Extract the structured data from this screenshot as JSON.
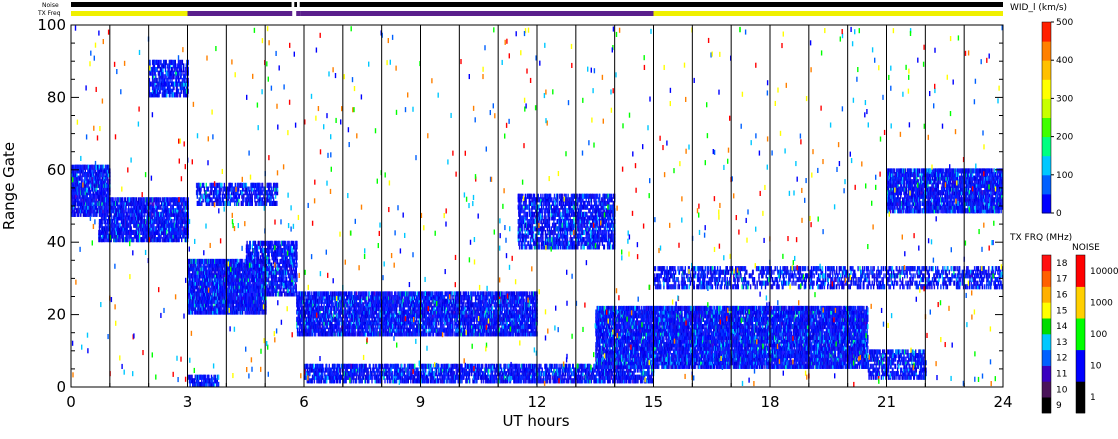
{
  "chart_data": {
    "type": "heatmap",
    "xlabel": "UT hours",
    "ylabel": "Range Gate",
    "xlim": [
      0,
      24
    ],
    "ylim": [
      0,
      100
    ],
    "x_ticks": [
      "0",
      "3",
      "6",
      "9",
      "12",
      "15",
      "18",
      "21",
      "24"
    ],
    "y_ticks": [
      "0",
      "20",
      "40",
      "60",
      "80",
      "100"
    ],
    "grid": "vertical lines every hour",
    "strip_labels": {
      "noise": "Noise",
      "txfreq": "TX Freq"
    },
    "noise_strip": {
      "color": "#000000",
      "gaps_ut": [
        [
          5.68,
          5.75
        ],
        [
          5.82,
          5.89
        ]
      ]
    },
    "txfreq_strip": [
      {
        "from": 0,
        "to": 3.0,
        "color": "#f0f000"
      },
      {
        "from": 3.0,
        "to": 5.7,
        "color": "#5a1f8c"
      },
      {
        "from": 5.7,
        "to": 5.8,
        "color": "#ffffff"
      },
      {
        "from": 5.8,
        "to": 5.9,
        "color": "#5a1f8c"
      },
      {
        "from": 5.9,
        "to": 15.0,
        "color": "#5a1f8c"
      },
      {
        "from": 15.0,
        "to": 24,
        "color": "#f0f000"
      }
    ],
    "echo_regions": [
      {
        "t0": 0.0,
        "t1": 1.0,
        "g0": 47,
        "g1": 61,
        "density": 0.75
      },
      {
        "t0": 0.7,
        "t1": 3.0,
        "g0": 40,
        "g1": 52,
        "density": 0.7
      },
      {
        "t0": 2.0,
        "t1": 3.0,
        "g0": 80,
        "g1": 90,
        "density": 0.55
      },
      {
        "t0": 3.0,
        "t1": 5.0,
        "g0": 20,
        "g1": 35,
        "density": 0.85
      },
      {
        "t0": 4.5,
        "t1": 5.8,
        "g0": 25,
        "g1": 40,
        "density": 0.6
      },
      {
        "t0": 3.2,
        "t1": 5.3,
        "g0": 50,
        "g1": 56,
        "density": 0.45
      },
      {
        "t0": 5.8,
        "t1": 12.0,
        "g0": 14,
        "g1": 26,
        "density": 0.7
      },
      {
        "t0": 6.0,
        "t1": 15.0,
        "g0": 1,
        "g1": 6,
        "density": 0.6
      },
      {
        "t0": 11.5,
        "t1": 14.0,
        "g0": 38,
        "g1": 53,
        "density": 0.55
      },
      {
        "t0": 13.5,
        "t1": 20.5,
        "g0": 5,
        "g1": 22,
        "density": 0.8
      },
      {
        "t0": 20.5,
        "t1": 22.0,
        "g0": 2,
        "g1": 10,
        "density": 0.5
      },
      {
        "t0": 15.0,
        "t1": 24.0,
        "g0": 27,
        "g1": 33,
        "density": 0.35
      },
      {
        "t0": 21.0,
        "t1": 24.0,
        "g0": 48,
        "g1": 60,
        "density": 0.75
      },
      {
        "t0": 3.0,
        "t1": 3.8,
        "g0": 0,
        "g1": 3,
        "density": 0.6
      }
    ],
    "colorbars": [
      {
        "title": "WID_l (km/s)",
        "type": "continuous",
        "range": [
          0,
          500
        ],
        "labels": [
          "0",
          "100",
          "200",
          "300",
          "400",
          "500"
        ],
        "colors": [
          "#0000ff",
          "#0060ff",
          "#00c8ff",
          "#00ff80",
          "#40ff00",
          "#c8ff00",
          "#ffff00",
          "#ffc000",
          "#ff8000",
          "#ff2000"
        ]
      },
      {
        "title": "TX FRQ (MHz)",
        "type": "discrete",
        "labels": [
          "9",
          "10",
          "11",
          "12",
          "13",
          "14",
          "15",
          "16",
          "17",
          "18"
        ],
        "colors": [
          "#000000",
          "#4a145a",
          "#3a00c0",
          "#0060ff",
          "#00c8ff",
          "#00dc00",
          "#ffff00",
          "#ffb000",
          "#ff6000",
          "#ff1010"
        ]
      },
      {
        "title": "NOISE",
        "type": "discrete",
        "labels": [
          "1",
          "10",
          "100",
          "1000",
          "10000"
        ],
        "colors": [
          "#000000",
          "#0000ff",
          "#00ff00",
          "#ffd000",
          "#ff0000"
        ]
      }
    ]
  }
}
